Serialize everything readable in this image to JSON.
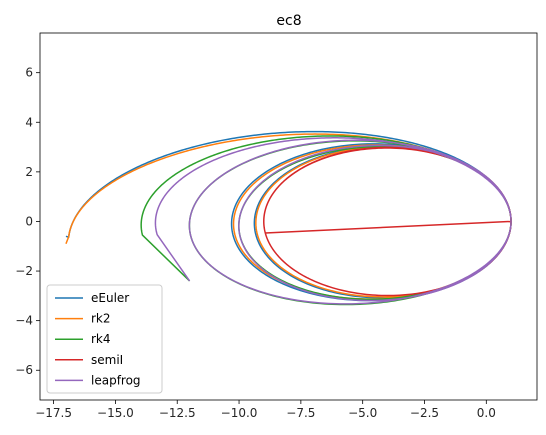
{
  "chart_data": {
    "type": "line",
    "title": "ec8",
    "xlabel": "",
    "ylabel": "",
    "xlim": [
      -18.05,
      2.05
    ],
    "ylim": [
      -7.2,
      7.6
    ],
    "xticks": [
      -17.5,
      -15.0,
      -12.5,
      -10.0,
      -7.5,
      -5.0,
      -2.5,
      0.0
    ],
    "xtick_labels": [
      "−17.5",
      "−15.0",
      "−12.5",
      "−10.0",
      "−7.5",
      "−5.0",
      "−2.5",
      "0.0"
    ],
    "yticks": [
      -6,
      -4,
      -2,
      0,
      2,
      4,
      6
    ],
    "ytick_labels": [
      "−6",
      "−4",
      "−2",
      "0",
      "2",
      "4",
      "6"
    ],
    "grid": false,
    "legend_position": "lower-left",
    "series": [
      {
        "name": "eEuler",
        "color": "#1f77b4",
        "spiral": [
          {
            "cx": -4.0,
            "rx": 5.0,
            "ry": 3.0
          },
          {
            "cx": -4.38,
            "rx": 5.38,
            "ry": 3.1
          },
          {
            "cx": -4.92,
            "rx": 5.92,
            "ry": 3.22
          },
          {
            "cx": -8.0,
            "rx": 9.0,
            "ry": 4.05
          }
        ],
        "end": [
          -17.0,
          -0.6
        ]
      },
      {
        "name": "rk2",
        "color": "#ff7f0e",
        "spiral": [
          {
            "cx": -4.0,
            "rx": 5.0,
            "ry": 2.98
          },
          {
            "cx": -4.32,
            "rx": 5.32,
            "ry": 3.06
          },
          {
            "cx": -4.9,
            "rx": 5.9,
            "ry": 3.15
          },
          {
            "cx": -8.0,
            "rx": 9.0,
            "ry": 3.92
          }
        ],
        "end": [
          -17.0,
          -0.9
        ]
      },
      {
        "name": "rk4",
        "color": "#2ca02c",
        "spiral": [
          {
            "cx": -4.0,
            "rx": 5.0,
            "ry": 2.95
          },
          {
            "cx": -5.0,
            "rx": 6.0,
            "ry": 3.2
          },
          {
            "cx": -6.0,
            "rx": 7.0,
            "ry": 3.4
          },
          {
            "cx": -6.5,
            "rx": 7.5,
            "ry": 3.5
          }
        ],
        "end": [
          -12.0,
          -2.4
        ]
      },
      {
        "name": "semiI",
        "color": "#d62728",
        "spiral": [
          {
            "cx": -4.0,
            "rx": 5.0,
            "ry": 2.95
          },
          {
            "cx": -4.0,
            "rx": 5.0,
            "ry": 3.0
          },
          {
            "cx": -4.0,
            "rx": 5.0,
            "ry": 2.97
          }
        ],
        "end": [
          1.0,
          0.0
        ]
      },
      {
        "name": "leapfrog",
        "color": "#9467bd",
        "spiral": [
          {
            "cx": -4.0,
            "rx": 5.0,
            "ry": 3.0
          },
          {
            "cx": -5.0,
            "rx": 6.0,
            "ry": 3.25
          },
          {
            "cx": -6.0,
            "rx": 7.0,
            "ry": 3.35
          },
          {
            "cx": -6.2,
            "rx": 7.2,
            "ry": 3.4
          }
        ],
        "end": [
          -12.0,
          -2.4
        ]
      }
    ]
  }
}
